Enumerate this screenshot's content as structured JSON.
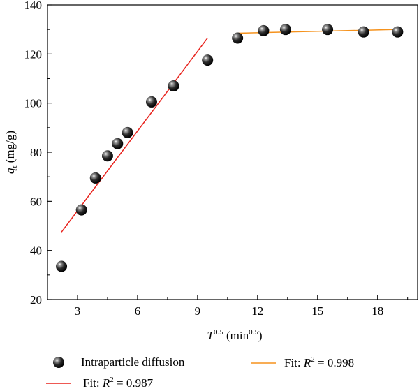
{
  "chart_data": {
    "type": "scatter",
    "title": "",
    "xlabel": {
      "base": "T",
      "sup": "0.5",
      "unit_open": "(min",
      "unit_sup": "0.5",
      "unit_close": ")"
    },
    "ylabel": {
      "base": "q",
      "sub": "t",
      "unit": "(mg/g)"
    },
    "xlim": [
      1.5,
      20.0
    ],
    "ylim": [
      20,
      140
    ],
    "x_ticks": [
      3,
      6,
      9,
      12,
      15,
      18
    ],
    "x_minor_ticks": [
      4.5,
      7.5,
      10.5,
      13.5,
      16.5,
      19.5
    ],
    "y_ticks": [
      20,
      40,
      60,
      80,
      100,
      120,
      140
    ],
    "y_minor_ticks": [
      30,
      50,
      70,
      90,
      110,
      130
    ],
    "grid": false,
    "series": [
      {
        "name": "Intraparticle diffusion",
        "kind": "scatter",
        "marker": "sphere",
        "color": "#111111",
        "x": [
          2.2,
          3.2,
          3.9,
          4.5,
          5.0,
          5.5,
          6.7,
          7.8,
          9.5,
          11.0,
          12.3,
          13.4,
          15.5,
          17.3,
          19.0
        ],
        "y": [
          33.5,
          56.5,
          69.5,
          78.5,
          83.5,
          88.0,
          100.5,
          107.0,
          117.5,
          126.5,
          129.5,
          130.0,
          130.0,
          129.0,
          129.0
        ]
      },
      {
        "name_prefix": "Fit: ",
        "name_r": "R",
        "name_sup": "2",
        "name_value": " = 0.987",
        "kind": "line",
        "color": "#e8221c",
        "x": [
          2.2,
          9.5
        ],
        "y": [
          47.5,
          126.5
        ]
      },
      {
        "name_prefix": "Fit: ",
        "name_r": "R",
        "name_sup": "2",
        "name_value": " = 0.998",
        "kind": "line",
        "color": "#f5921d",
        "x": [
          11.0,
          19.0
        ],
        "y": [
          128.5,
          130.0
        ]
      }
    ]
  }
}
